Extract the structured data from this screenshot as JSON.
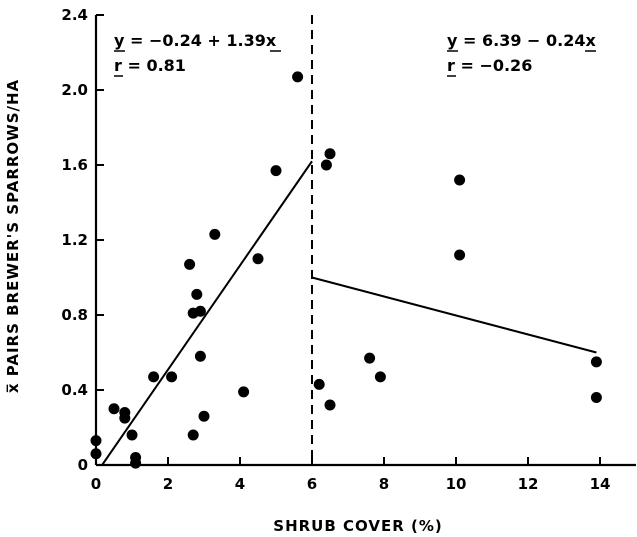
{
  "chart_data": {
    "type": "scatter",
    "xlabel": "SHRUB COVER (%)",
    "ylabel": "x̅ PAIRS BREWER'S SPARROWS/HA",
    "xlim": [
      0,
      15
    ],
    "ylim": [
      0,
      2.4
    ],
    "xticks": [
      "0",
      "2",
      "4",
      "6",
      "8",
      "10",
      "12",
      "14"
    ],
    "xtick_values": [
      0,
      2,
      4,
      6,
      8,
      10,
      12,
      14
    ],
    "yticks": [
      "0",
      "0.4",
      "0.8",
      "1.2",
      "1.6",
      "2.0",
      "2.4"
    ],
    "ytick_values": [
      0,
      0.4,
      0.8,
      1.2,
      1.6,
      2.0,
      2.4
    ],
    "points": [
      {
        "x": 0.0,
        "y": 0.13
      },
      {
        "x": 0.0,
        "y": 0.06
      },
      {
        "x": 0.5,
        "y": 0.3
      },
      {
        "x": 0.8,
        "y": 0.28
      },
      {
        "x": 0.8,
        "y": 0.25
      },
      {
        "x": 1.0,
        "y": 0.16
      },
      {
        "x": 1.1,
        "y": 0.04
      },
      {
        "x": 1.1,
        "y": 0.01
      },
      {
        "x": 1.6,
        "y": 0.47
      },
      {
        "x": 2.1,
        "y": 0.47
      },
      {
        "x": 2.6,
        "y": 1.07
      },
      {
        "x": 2.7,
        "y": 0.81
      },
      {
        "x": 2.7,
        "y": 0.16
      },
      {
        "x": 2.8,
        "y": 0.91
      },
      {
        "x": 2.9,
        "y": 0.82
      },
      {
        "x": 2.9,
        "y": 0.58
      },
      {
        "x": 3.0,
        "y": 0.26
      },
      {
        "x": 3.3,
        "y": 1.23
      },
      {
        "x": 4.1,
        "y": 0.39
      },
      {
        "x": 4.5,
        "y": 1.1
      },
      {
        "x": 5.0,
        "y": 1.57
      },
      {
        "x": 5.6,
        "y": 2.07
      },
      {
        "x": 6.2,
        "y": 0.43
      },
      {
        "x": 6.4,
        "y": 1.6
      },
      {
        "x": 6.5,
        "y": 1.66
      },
      {
        "x": 6.5,
        "y": 0.32
      },
      {
        "x": 7.6,
        "y": 0.57
      },
      {
        "x": 7.9,
        "y": 0.47
      },
      {
        "x": 10.1,
        "y": 1.52
      },
      {
        "x": 10.1,
        "y": 1.12
      },
      {
        "x": 13.9,
        "y": 0.55
      },
      {
        "x": 13.9,
        "y": 0.36
      }
    ],
    "fit_lines": [
      {
        "x": [
          0.17,
          6.0
        ],
        "y": [
          0.0,
          1.62
        ]
      },
      {
        "x": [
          6.0,
          13.9
        ],
        "y": [
          1.0,
          0.6
        ]
      }
    ],
    "divider_x": 6,
    "annotations": [
      {
        "eq": "y = −0.24 + 1.39x",
        "r": "r =   0.81"
      },
      {
        "eq": "y = 6.39 − 0.24x",
        "r": "r = −0.26"
      }
    ]
  }
}
